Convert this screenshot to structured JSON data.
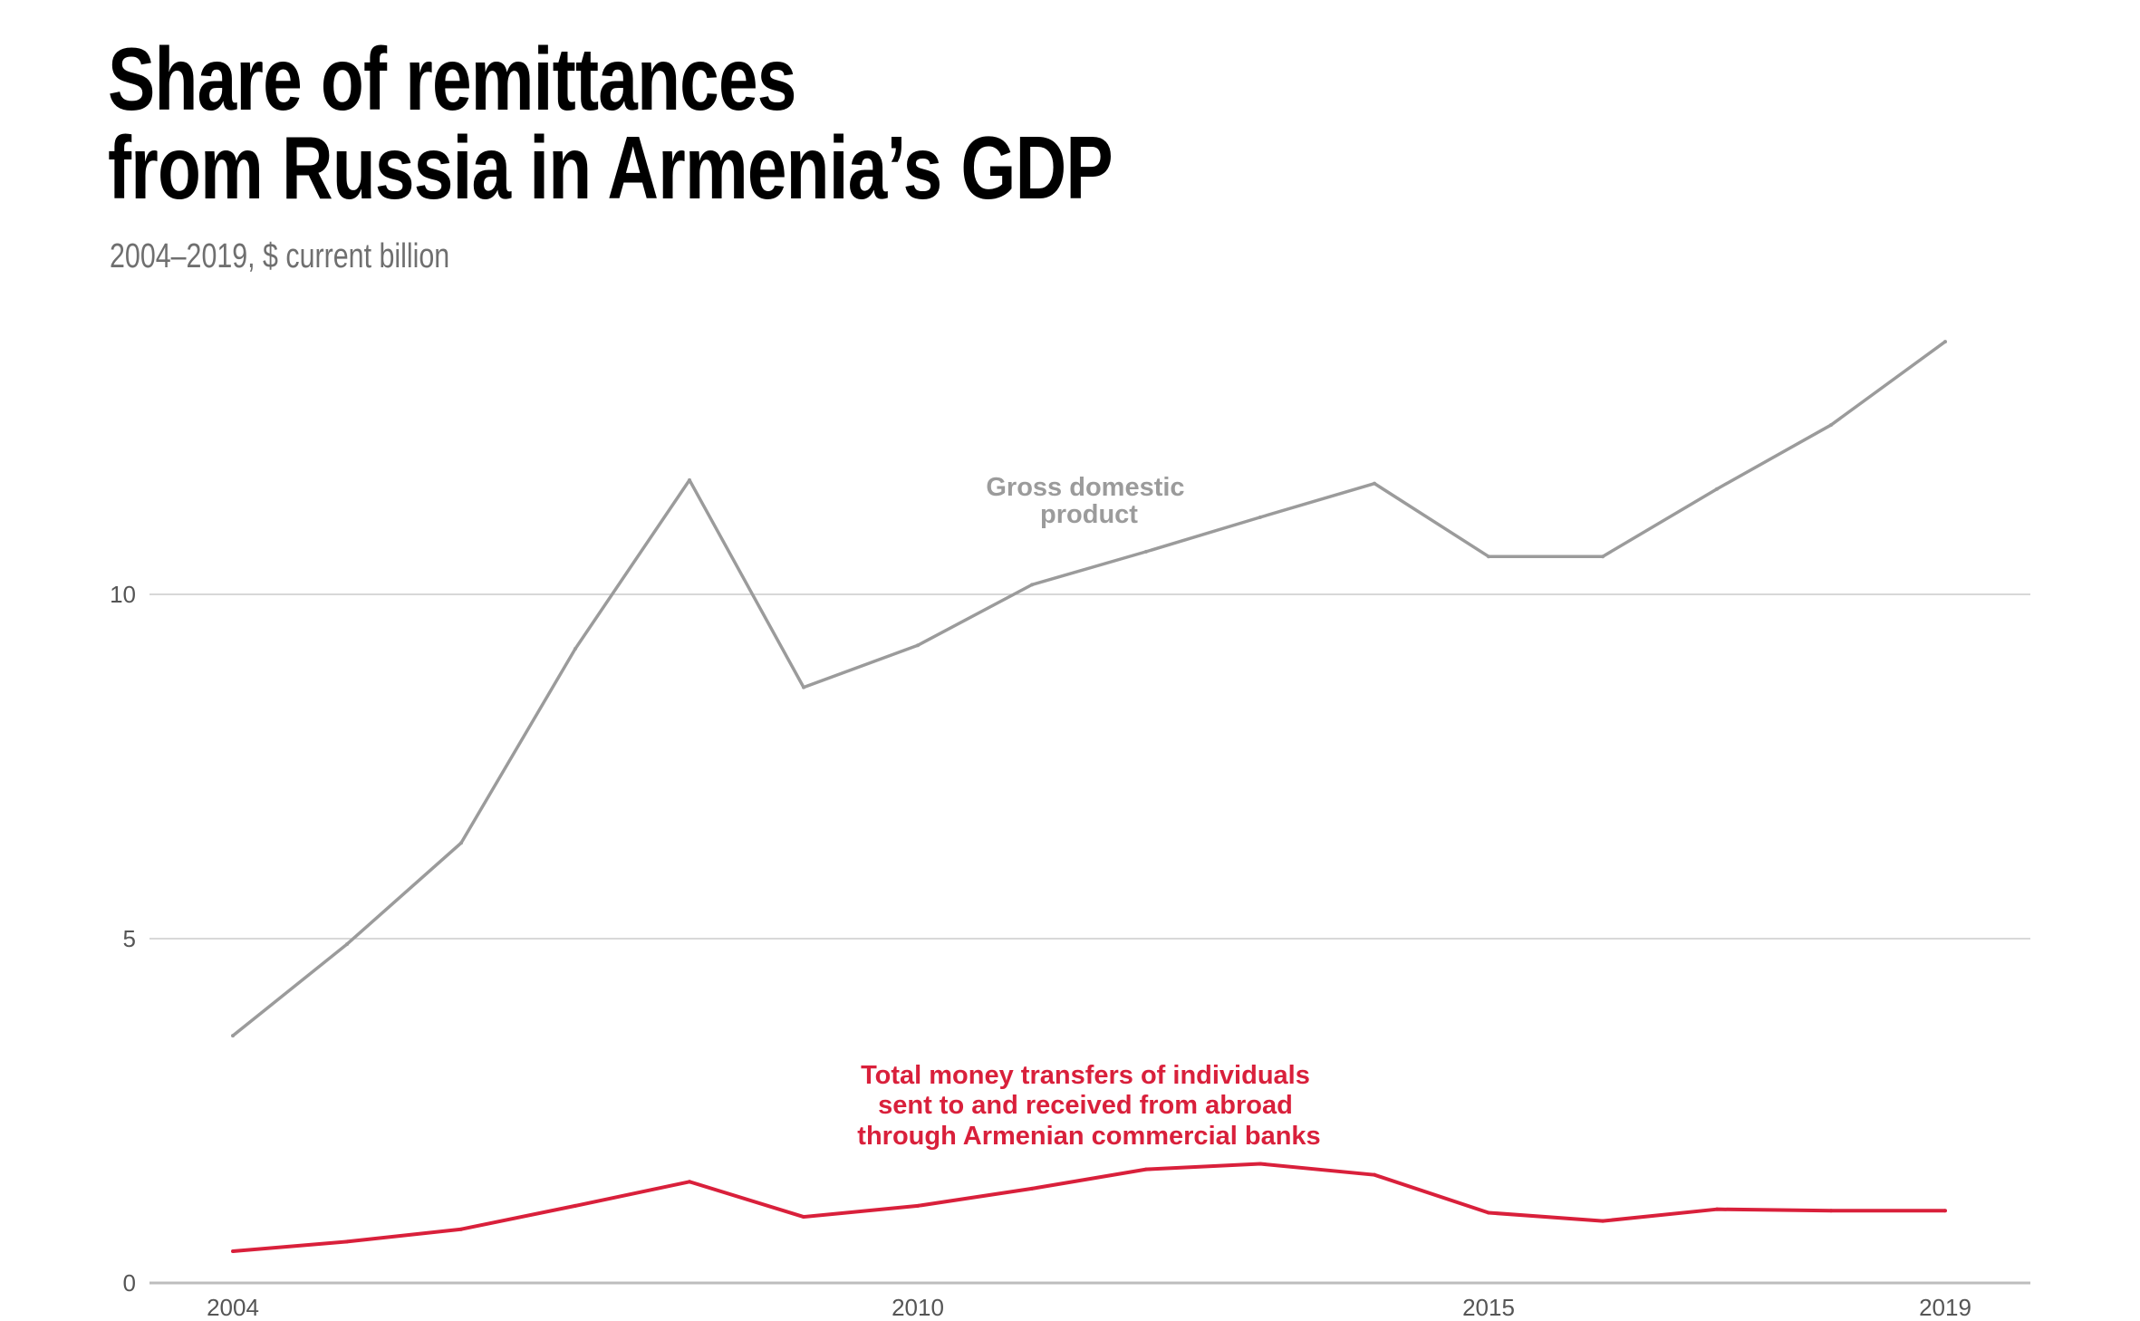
{
  "title_line1": "Share of remittances",
  "title_line2": "from Russia in Armenia’s GDP",
  "subtitle": "2004–2019, $ current billion",
  "colors": {
    "gdp": "#9b9b9b",
    "remittances": "#d9203b",
    "grid": "#cccccc"
  },
  "chart_data": {
    "type": "line",
    "title": "Share of remittances from Russia in Armenia’s GDP",
    "subtitle": "2004–2019, $ current billion",
    "x": [
      2004,
      2005,
      2006,
      2007,
      2008,
      2009,
      2010,
      2011,
      2012,
      2013,
      2014,
      2015,
      2016,
      2017,
      2018,
      2019
    ],
    "x_ticks": [
      "2004",
      "2010",
      "2015",
      "2019"
    ],
    "y_ticks": [
      "0",
      "5",
      "10"
    ],
    "ylim": [
      0,
      14
    ],
    "grid": true,
    "series": [
      {
        "name": "Gross domestic product",
        "label_lines": [
          "Gross domestic",
          "product"
        ],
        "values": [
          3.59,
          4.92,
          6.39,
          9.21,
          11.66,
          8.65,
          9.26,
          10.14,
          10.62,
          11.12,
          11.61,
          10.55,
          10.55,
          11.53,
          12.46,
          13.67
        ]
      },
      {
        "name": "Total money transfers of individuals sent to and received from abroad through Armenian commercial banks",
        "label_lines": [
          "Total money transfers of individuals",
          "sent to and received from abroad",
          "through Armenian commercial banks"
        ],
        "values": [
          0.46,
          0.6,
          0.78,
          1.12,
          1.47,
          0.96,
          1.12,
          1.37,
          1.65,
          1.73,
          1.57,
          1.02,
          0.9,
          1.07,
          1.05,
          1.05
        ]
      }
    ]
  }
}
